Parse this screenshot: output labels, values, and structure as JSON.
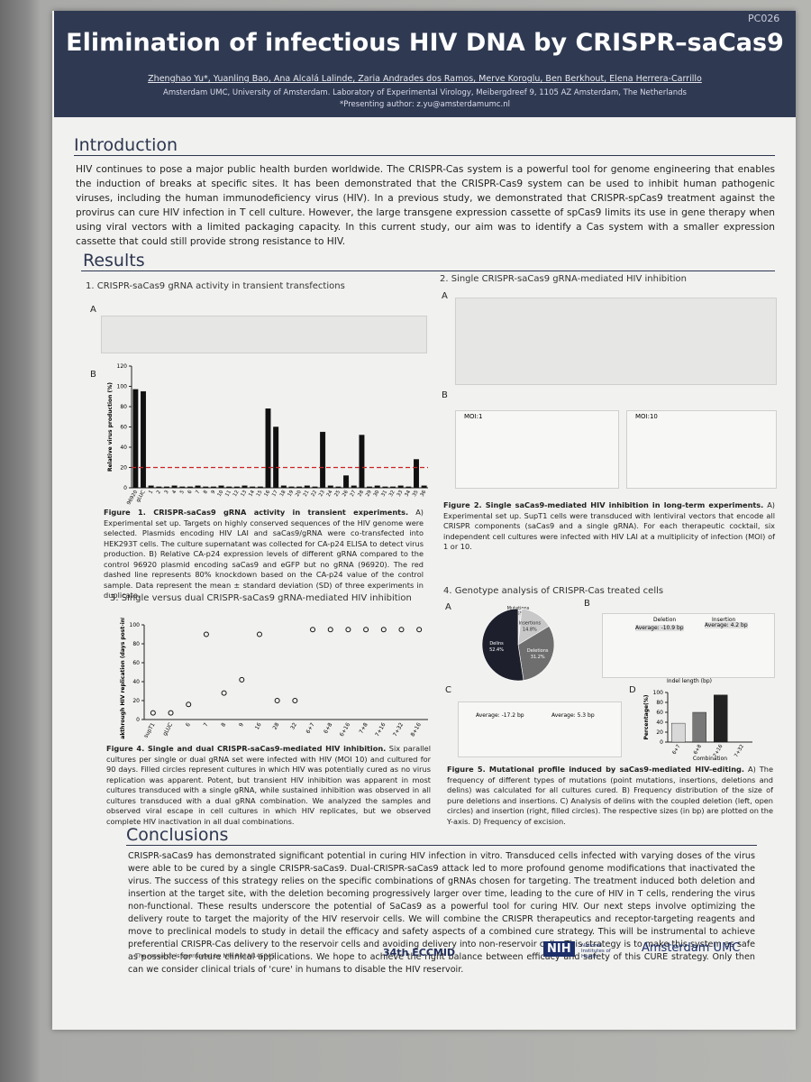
{
  "header": {
    "code": "PC026",
    "title": "Elimination of infectious HIV DNA by CRISPR–saCas9",
    "authors": "Zhenghao Yu*, Yuanling Bao, Ana Alcalá Lalinde, Zaria Andrades dos Ramos, Merve Koroglu, Ben Berkhout, Elena Herrera-Carrillo",
    "affiliation": "Amsterdam UMC, University of Amsterdam. Laboratory of Experimental Virology, Meibergdreef 9, 1105 AZ Amsterdam, The Netherlands",
    "contact": "*Presenting author: z.yu@amsterdamumc.nl"
  },
  "introduction": {
    "heading": "Introduction",
    "text": "HIV continues to pose a major public health burden worldwide. The CRISPR-Cas system is a powerful tool for genome engineering that enables the induction of breaks at specific sites. It has been demonstrated that the CRISPR-Cas9 system can be used to inhibit human pathogenic viruses, including the human immunodeficiency virus (HIV). In a previous study, we demonstrated that CRISPR-spCas9 treatment against the provirus can cure HIV infection in T cell culture. However, the large transgene expression cassette of spCas9 limits its use in gene therapy when using viral vectors with a limited packaging capacity. In this current study, our aim was to identify a Cas system with a smaller expression cassette that could still provide strong resistance to HIV."
  },
  "results": {
    "heading": "Results",
    "sections": [
      {
        "heading": "1. CRISPR-saCas9 gRNA activity in transient transfections",
        "panels": [
          "A",
          "B"
        ],
        "caption_label": "Figure 1. CRISPR-saCas9 gRNA activity in transient experiments.",
        "caption": "A) Experimental set up. Targets on highly conserved sequences of the HIV genome were selected. Plasmids encoding HIV LAI and saCas9/gRNA were co-transfected into HEK293T cells. The culture supernatant was collected for CA-p24 ELISA to detect virus production. B) Relative CA-p24 expression levels of different gRNA compared to the control 96920 plasmid encoding saCas9 and eGFP but no gRNA (96920). The red dashed line represents 80% knockdown based on the CA-p24 value of the control sample. Data represent the mean ± standard deviation (SD) of three experiments in duplicate."
      },
      {
        "heading": "2. Single CRISPR-saCas9 gRNA-mediated HIV inhibition",
        "panels": [
          "A",
          "B"
        ],
        "caption_label": "Figure 2. Single saCas9-mediated HIV inhibition in long-term experiments.",
        "caption": "A) Experimental set up. SupT1 cells were transduced with lentiviral vectors that encode all CRISPR components (saCas9 and a single gRNA). For each therapeutic cocktail, six independent cell cultures were infected with HIV LAI at a multiplicity of infection (MOI) of 1 or 10.",
        "plot_titles": [
          "MOI:1",
          "MOI:10"
        ]
      },
      {
        "heading": "3. Single versus dual CRISPR-saCas9 gRNA-mediated HIV inhibition",
        "caption_label": "Figure 4. Single and dual CRISPR-saCas9-mediated HIV inhibition.",
        "caption": "Six parallel cultures per single or dual gRNA set were infected with HIV (MOI 10) and cultured for 90 days. Filled circles represent cultures in which HIV was potentially cured as no virus replication was apparent. Potent, but transient HIV inhibition was apparent in most cultures transduced with a single gRNA, while sustained inhibition was observed in all cultures transduced with a dual gRNA combination. We analyzed the samples and observed viral escape in cell cultures in which HIV replicates, but we observed complete HIV inactivation in all dual combinations."
      },
      {
        "heading": "4. Genotype analysis of CRISPR-Cas treated cells",
        "panels": [
          "A",
          "B",
          "C",
          "D"
        ],
        "caption_label": "Figure 5. Mutational profile induced by saCas9-mediated HIV-editing.",
        "caption": "A) The frequency of different types of mutations (point mutations, insertions, deletions and delins) was calculated for all cultures cured. B) Frequency distribution of the size of pure deletions and insertions. C) Analysis of delins with the coupled deletion (left, open circles) and insertion (right, filled circles). The respective sizes (in bp) are plotted on the Y-axis. D) Frequency of excision.",
        "annotations": [
          "Deletion",
          "Insertion",
          "Average: -10.9 bp",
          "Average: 4.2 bp",
          "Average: -17.2 bp",
          "Average: 5.3 bp",
          "Indel length (bp)"
        ]
      }
    ]
  },
  "chart_data": [
    {
      "type": "bar",
      "ylabel": "Relative virus production (%)",
      "color": "#111111",
      "threshold": 20,
      "threshold_color": "#cc2222",
      "categories": [
        "96920",
        "gLUC",
        "1",
        "2",
        "3",
        "4",
        "5",
        "6",
        "7",
        "8",
        "9",
        "10",
        "11",
        "12",
        "13",
        "14",
        "15",
        "16",
        "17",
        "18",
        "19",
        "20",
        "21",
        "22",
        "23",
        "24",
        "25",
        "26",
        "27",
        "28",
        "29",
        "30",
        "31",
        "32",
        "33",
        "34",
        "35",
        "36"
      ],
      "values": [
        97,
        95,
        2,
        1,
        1,
        2,
        1,
        1,
        2,
        1,
        1,
        2,
        1,
        1,
        2,
        1,
        1,
        78,
        60,
        2,
        1,
        1,
        2,
        1,
        55,
        2,
        1,
        12,
        2,
        52,
        1,
        2,
        1,
        1,
        2,
        1,
        28,
        2
      ],
      "ylim": [
        0,
        120
      ],
      "yticks": [
        0,
        20,
        40,
        60,
        80,
        100,
        120
      ]
    },
    {
      "type": "dot",
      "ylabel": "Breakthrough HIV replication (days post-infection)",
      "color": "#111111",
      "categories": [
        "supT1",
        "gLUC",
        "6",
        "7",
        "8",
        "9",
        "16",
        "28",
        "32",
        "6+7",
        "6+8",
        "6+16",
        "7+8",
        "7+16",
        "7+32",
        "8+16"
      ],
      "values": [
        7,
        7,
        16,
        90,
        28,
        42,
        90,
        20,
        20,
        95,
        95,
        95,
        95,
        95,
        95,
        95
      ],
      "ylim": [
        0,
        100
      ],
      "yticks": [
        0,
        20,
        40,
        60,
        80,
        100
      ]
    },
    {
      "type": "pie",
      "categories": [
        "Mutations",
        "Insertions",
        "Deletions",
        "Delins"
      ],
      "values": [
        1.6,
        14.8,
        31.2,
        52.4
      ],
      "value_labels": [
        "1.6%",
        "14.8%",
        "31.2%",
        "52.4%"
      ],
      "colors": [
        "#e0e0e0",
        "#c8c8c8",
        "#6e6e6e",
        "#1d1f2c"
      ]
    },
    {
      "type": "bar",
      "ylabel": "Percentage(%)",
      "xlabel": "Combination",
      "colors": [
        "#d8d8d8",
        "#777777",
        "#222222",
        "#bbbbbb"
      ],
      "categories": [
        "6+7",
        "6+8",
        "7+16",
        "7+32"
      ],
      "values": [
        38,
        60,
        95,
        0
      ],
      "ylim": [
        0,
        100
      ],
      "yticks": [
        0,
        20,
        40,
        60,
        80,
        100
      ]
    }
  ],
  "conclusions": {
    "heading": "Conclusions",
    "text": "CRISPR-saCas9 has demonstrated significant potential in curing HIV infection in vitro. Transduced cells infected with varying doses of the virus were able to be cured by a single CRISPR-saCas9. Dual-CRISPR-saCas9 attack led to more profound genome modifications that inactivated the virus. The success of this strategy relies on the specific combinations of gRNAs chosen for targeting. The treatment induced both deletion and insertion at the target site, with the deletion becoming progressively larger over time, leading to the cure of HIV in T cells, rendering the virus non-functional. These results underscore the potential of SaCas9 as a powerful tool for curing HIV. Our next steps involve optimizing the delivery route to target the majority of the HIV reservoir cells. We will combine the CRISPR therapeutics and receptor-targeting reagents and move to preclinical models to study in detail the efficacy and safety aspects of a combined cure strategy. This will be instrumental to achieve preferential CRISPR-Cas delivery to the reservoir cells and avoiding delivery into non-reservoir cells. This strategy is to make this system as safe as possible for future clinical applications. We hope to achieve the right balance between efficacy and safety of this CURE strategy. Only then can we consider clinical trials of 'cure' in humans to disable the HIV reservoir."
  },
  "footer": {
    "sponsor": "The research is sponsored by NIH R01AI145045",
    "logos": [
      "34th ECCMID",
      "NIH",
      "National Institutes of Health",
      "Amsterdam UMC"
    ]
  }
}
